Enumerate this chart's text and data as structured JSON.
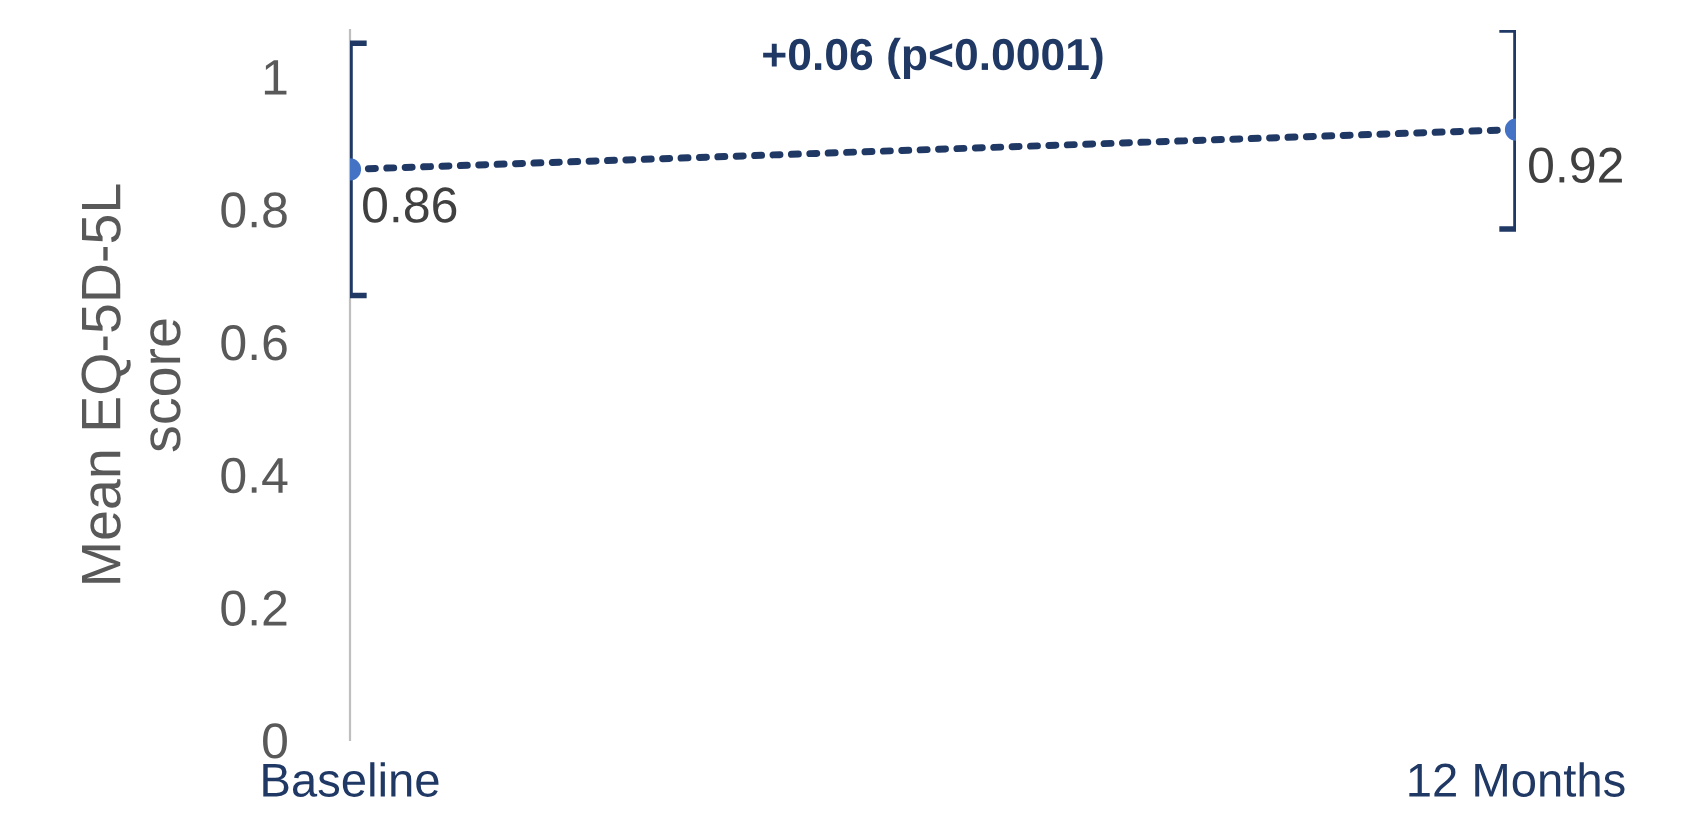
{
  "chart_data": {
    "type": "line",
    "ylabel": "Mean EQ-5D-5L\nscore",
    "categories": [
      "Baseline",
      "12 Months"
    ],
    "series": [
      {
        "color": "#4472c4",
        "values": [
          0.86,
          0.92
        ],
        "errors": [
          [
            0.67,
            1.05
          ],
          [
            0.77,
            1.07
          ]
        ]
      }
    ],
    "ylim": [
      0,
      1.07
    ],
    "yticks": [
      0,
      0.2,
      0.4,
      0.6,
      0.8,
      1
    ],
    "data_labels": true,
    "grid": false,
    "legend": false,
    "marker": "circle",
    "line_style": "dotted",
    "annotations": [
      "+0.06 (p<0.0001)"
    ]
  }
}
